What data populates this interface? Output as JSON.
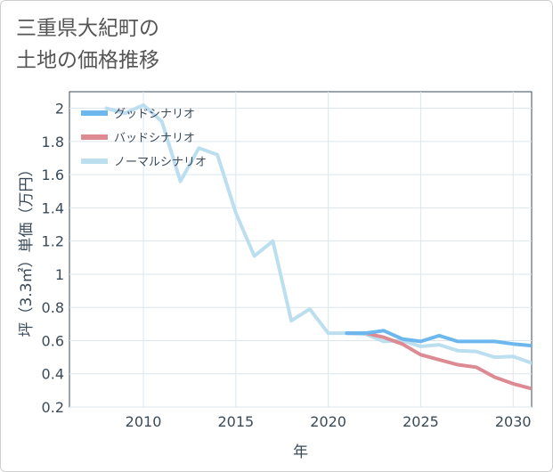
{
  "title_lines": [
    "三重県大紀町の",
    "土地の価格推移"
  ],
  "chart_data": {
    "type": "line",
    "xlabel": "年",
    "ylabel": "坪（3.3㎡）単価（万円）",
    "xlim": [
      2006,
      2031
    ],
    "ylim": [
      0.2,
      2.1
    ],
    "xticks": [
      2010,
      2015,
      2020,
      2025,
      2030
    ],
    "yticks": [
      0.2,
      0.4,
      0.6,
      0.8,
      1,
      1.2,
      1.4,
      1.6,
      1.8,
      2
    ],
    "ytick_labels": [
      "0.2",
      "0.4",
      "0.6",
      "0.8",
      "1",
      "1.2",
      "1.4",
      "1.6",
      "1.8",
      "2"
    ],
    "grid": true,
    "legend_position": "top-left",
    "series": [
      {
        "name": "グッドシナリオ",
        "color": "#6cb8ee",
        "x": [
          2021,
          2022,
          2023,
          2024,
          2025,
          2026,
          2027,
          2028,
          2029,
          2030,
          2031
        ],
        "y": [
          0.645,
          0.645,
          0.66,
          0.61,
          0.595,
          0.63,
          0.595,
          0.595,
          0.595,
          0.58,
          0.57
        ]
      },
      {
        "name": "バッドシナリオ",
        "color": "#dd8a92",
        "x": [
          2021,
          2022,
          2023,
          2024,
          2025,
          2026,
          2027,
          2028,
          2029,
          2030,
          2031
        ],
        "y": [
          0.645,
          0.645,
          0.62,
          0.58,
          0.515,
          0.485,
          0.455,
          0.44,
          0.38,
          0.34,
          0.31
        ]
      },
      {
        "name": "ノーマルシナリオ",
        "color": "#bcdff0",
        "x": [
          2008,
          2009,
          2010,
          2011,
          2012,
          2013,
          2014,
          2015,
          2016,
          2017,
          2018,
          2019,
          2020,
          2021,
          2022,
          2023,
          2024,
          2025,
          2026,
          2027,
          2028,
          2029,
          2030,
          2031
        ],
        "y": [
          2.0,
          1.97,
          2.02,
          1.92,
          1.56,
          1.76,
          1.72,
          1.37,
          1.11,
          1.2,
          0.72,
          0.79,
          0.645,
          0.645,
          0.64,
          0.595,
          0.6,
          0.565,
          0.575,
          0.54,
          0.535,
          0.5,
          0.505,
          0.465
        ]
      }
    ]
  }
}
